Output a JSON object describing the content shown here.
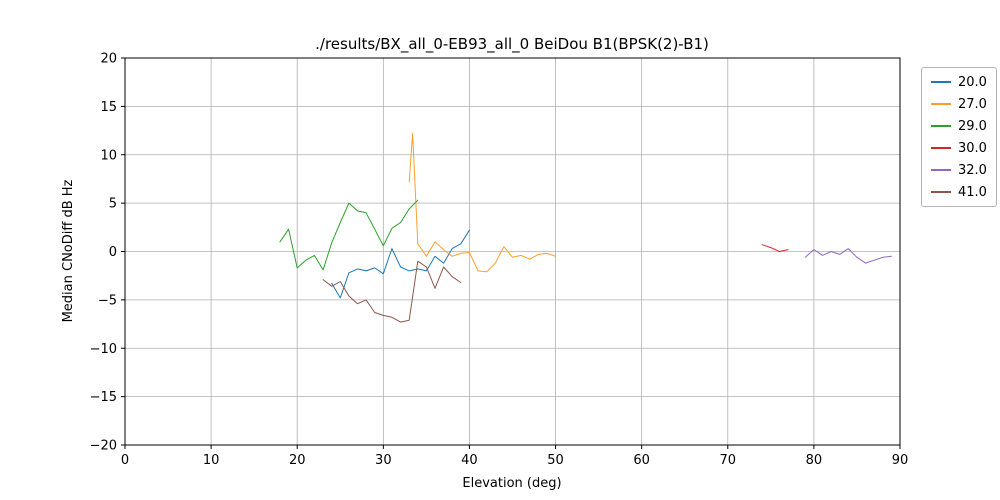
{
  "chart_data": {
    "type": "line",
    "title": "./results/BX_all_0-EB93_all_0 BeiDou B1(BPSK(2)-B1)",
    "xlabel": "Elevation (deg)",
    "ylabel": "Median CNoDiff dB Hz",
    "xlim": [
      0,
      90
    ],
    "ylim": [
      -20,
      20
    ],
    "xticks": [
      0,
      10,
      20,
      30,
      40,
      50,
      60,
      70,
      80,
      90
    ],
    "yticks": [
      -20,
      -15,
      -10,
      -5,
      0,
      5,
      10,
      15,
      20
    ],
    "grid": true,
    "legend_position": "outside-right",
    "series": [
      {
        "name": "20.0",
        "color": "#1f77b4",
        "x": [
          24,
          25,
          26,
          27,
          28,
          29,
          30,
          31,
          32,
          33,
          34,
          35,
          36,
          37,
          38,
          39,
          40
        ],
        "y": [
          -3.3,
          -4.8,
          -2.2,
          -1.8,
          -2.0,
          -1.7,
          -2.3,
          0.3,
          -1.6,
          -2.0,
          -1.8,
          -2.0,
          -0.5,
          -1.2,
          0.3,
          0.8,
          2.2
        ]
      },
      {
        "name": "27.0",
        "color": "#ff9e2c",
        "x": [
          33,
          33.4,
          34,
          35,
          36,
          37,
          38,
          39,
          40,
          41,
          42,
          43,
          44,
          45,
          46,
          47,
          48,
          49,
          50
        ],
        "y": [
          7.2,
          12.2,
          0.8,
          -0.5,
          1.0,
          0.2,
          -0.5,
          -0.2,
          -0.1,
          -2.0,
          -2.1,
          -1.2,
          0.5,
          -0.6,
          -0.4,
          -0.8,
          -0.3,
          -0.2,
          -0.5
        ]
      },
      {
        "name": "29.0",
        "color": "#2ca02c",
        "x": [
          18,
          19,
          20,
          21,
          22,
          23,
          24,
          25,
          26,
          27,
          28,
          29,
          30,
          31,
          32,
          33,
          34
        ],
        "y": [
          1.0,
          2.3,
          -1.7,
          -0.9,
          -0.4,
          -1.9,
          0.9,
          3.0,
          5.0,
          4.2,
          4.0,
          2.3,
          0.6,
          2.4,
          3.0,
          4.4,
          5.3
        ]
      },
      {
        "name": "30.0",
        "color": "#d62728",
        "x": [
          74,
          75,
          76,
          77
        ],
        "y": [
          0.7,
          0.4,
          0.0,
          0.2
        ]
      },
      {
        "name": "32.0",
        "color": "#9467bd",
        "x": [
          79,
          80,
          81,
          82,
          83,
          84,
          85,
          86,
          87,
          88,
          89
        ],
        "y": [
          -0.6,
          0.2,
          -0.4,
          0.0,
          -0.3,
          0.3,
          -0.6,
          -1.2,
          -0.9,
          -0.6,
          -0.5
        ]
      },
      {
        "name": "41.0",
        "color": "#8c564b",
        "x": [
          23,
          24,
          25,
          26,
          27,
          28,
          29,
          30,
          31,
          32,
          33,
          34,
          35,
          36,
          37,
          38,
          39
        ],
        "y": [
          -2.9,
          -3.6,
          -3.1,
          -4.6,
          -5.4,
          -5.0,
          -6.3,
          -6.6,
          -6.8,
          -7.3,
          -7.1,
          -1.0,
          -1.6,
          -3.8,
          -1.6,
          -2.6,
          -3.2
        ]
      }
    ]
  }
}
